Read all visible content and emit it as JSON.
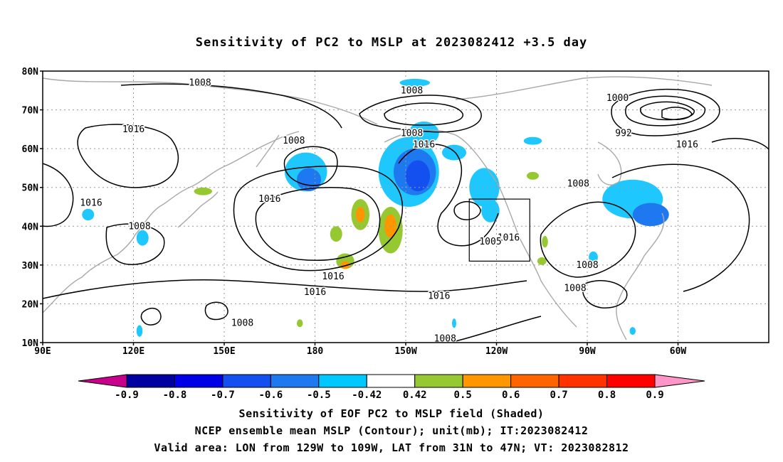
{
  "title": "Sensitivity of PC2 to MSLP at 2023082412 +3.5 day",
  "lat_labels": [
    "80N",
    "70N",
    "60N",
    "50N",
    "40N",
    "30N",
    "20N",
    "10N"
  ],
  "lon_labels": [
    "90E",
    "120E",
    "150E",
    "180",
    "150W",
    "120W",
    "90W",
    "60W"
  ],
  "contour_labels": [
    {
      "text": "1008",
      "lon": 142,
      "lat": 77
    },
    {
      "text": "1016",
      "lon": 120,
      "lat": 65
    },
    {
      "text": "1008",
      "lon": 173,
      "lat": 62
    },
    {
      "text": "1008",
      "lon": 212,
      "lat": 75
    },
    {
      "text": "1000",
      "lon": 280,
      "lat": 73
    },
    {
      "text": "992",
      "lon": 282,
      "lat": 64
    },
    {
      "text": "1016",
      "lon": 303,
      "lat": 61
    },
    {
      "text": "1008",
      "lon": 212,
      "lat": 64
    },
    {
      "text": "1016",
      "lon": 216,
      "lat": 61
    },
    {
      "text": "1008",
      "lon": 267,
      "lat": 51
    },
    {
      "text": "1016",
      "lon": 106,
      "lat": 46
    },
    {
      "text": "1016",
      "lon": 165,
      "lat": 47
    },
    {
      "text": "1008",
      "lon": 122,
      "lat": 40
    },
    {
      "text": "1016",
      "lon": 244,
      "lat": 37
    },
    {
      "text": "1005",
      "lon": 238,
      "lat": 36
    },
    {
      "text": "1008",
      "lon": 270,
      "lat": 30
    },
    {
      "text": "1016",
      "lon": 186,
      "lat": 27
    },
    {
      "text": "1016",
      "lon": 180,
      "lat": 23
    },
    {
      "text": "1016",
      "lon": 221,
      "lat": 22
    },
    {
      "text": "1008",
      "lon": 266,
      "lat": 24
    },
    {
      "text": "1008",
      "lon": 156,
      "lat": 15
    },
    {
      "text": "1008",
      "lon": 223,
      "lat": 11
    }
  ],
  "shading": [
    {
      "lon": 177,
      "lat": 54,
      "rx": 7,
      "ry": 5,
      "level": -0.5
    },
    {
      "lon": 178,
      "lat": 52,
      "rx": 4,
      "ry": 3,
      "level": -0.6
    },
    {
      "lon": 211,
      "lat": 54,
      "rx": 10,
      "ry": 9,
      "level": -0.5
    },
    {
      "lon": 213,
      "lat": 54,
      "rx": 7,
      "ry": 6,
      "level": -0.6
    },
    {
      "lon": 214,
      "lat": 53,
      "rx": 4,
      "ry": 4,
      "level": -0.7
    },
    {
      "lon": 216,
      "lat": 64,
      "rx": 5,
      "ry": 3,
      "level": -0.5
    },
    {
      "lon": 213,
      "lat": 77,
      "rx": 5,
      "ry": 1,
      "level": -0.5
    },
    {
      "lon": 226,
      "lat": 59,
      "rx": 4,
      "ry": 2,
      "level": -0.5
    },
    {
      "lon": 236,
      "lat": 50,
      "rx": 5,
      "ry": 5,
      "level": -0.5
    },
    {
      "lon": 238,
      "lat": 44,
      "rx": 3,
      "ry": 3,
      "level": -0.5
    },
    {
      "lon": 252,
      "lat": 62,
      "rx": 3,
      "ry": 1,
      "level": -0.5
    },
    {
      "lon": 285,
      "lat": 47,
      "rx": 10,
      "ry": 5,
      "level": -0.5
    },
    {
      "lon": 291,
      "lat": 43,
      "rx": 6,
      "ry": 3,
      "level": -0.6
    },
    {
      "lon": 272,
      "lat": 32,
      "rx": 1.5,
      "ry": 1.5,
      "level": -0.5
    },
    {
      "lon": 105,
      "lat": 43,
      "rx": 2,
      "ry": 1.5,
      "level": -0.5
    },
    {
      "lon": 123,
      "lat": 37,
      "rx": 2,
      "ry": 2,
      "level": -0.5
    },
    {
      "lon": 122,
      "lat": 13,
      "rx": 1,
      "ry": 1.5,
      "level": -0.5
    },
    {
      "lon": 226,
      "lat": 15,
      "rx": 0.7,
      "ry": 1.2,
      "level": -0.5
    },
    {
      "lon": 285,
      "lat": 13,
      "rx": 1,
      "ry": 1,
      "level": -0.5
    },
    {
      "lon": 195,
      "lat": 43,
      "rx": 3,
      "ry": 4,
      "level": 0.5
    },
    {
      "lon": 195,
      "lat": 43,
      "rx": 1.5,
      "ry": 2,
      "level": 0.6
    },
    {
      "lon": 190,
      "lat": 31,
      "rx": 3,
      "ry": 2,
      "level": 0.5
    },
    {
      "lon": 190,
      "lat": 30,
      "rx": 1.5,
      "ry": 1,
      "level": 0.6
    },
    {
      "lon": 205,
      "lat": 39,
      "rx": 4,
      "ry": 6,
      "level": 0.5
    },
    {
      "lon": 205,
      "lat": 40,
      "rx": 2,
      "ry": 3,
      "level": 0.6
    },
    {
      "lon": 187,
      "lat": 38,
      "rx": 2,
      "ry": 2,
      "level": 0.5
    },
    {
      "lon": 143,
      "lat": 49,
      "rx": 3,
      "ry": 1,
      "level": 0.5
    },
    {
      "lon": 252,
      "lat": 53,
      "rx": 2,
      "ry": 1,
      "level": 0.5
    },
    {
      "lon": 256,
      "lat": 36,
      "rx": 1,
      "ry": 1.5,
      "level": 0.5
    },
    {
      "lon": 255,
      "lat": 31,
      "rx": 1.5,
      "ry": 1,
      "level": 0.5
    },
    {
      "lon": 175,
      "lat": 15,
      "rx": 1,
      "ry": 1,
      "level": 0.5
    }
  ],
  "colorbar": {
    "labels": [
      "-0.9",
      "-0.8",
      "-0.7",
      "-0.6",
      "-0.5",
      "-0.42",
      "0.42",
      "0.5",
      "0.6",
      "0.7",
      "0.8",
      "0.9"
    ],
    "colors": [
      "#c8008c",
      "#0000a0",
      "#0000e6",
      "#1450f0",
      "#1e78f0",
      "#00c8ff",
      "#ffffff",
      "#96c832",
      "#ff9600",
      "#ff6400",
      "#ff3200",
      "#ff0000",
      "#ff96c8"
    ]
  },
  "valid_box": {
    "lon_from": 231,
    "lon_to": 251,
    "lat_from": 31,
    "lat_to": 47
  },
  "captions": [
    "Sensitivity of EOF PC2 to MSLP field (Shaded)",
    "NCEP ensemble mean MSLP (Contour); unit(mb); IT:2023082412",
    "Valid area: LON from 129W to 109W, LAT from 31N to 47N; VT: 2023082812"
  ]
}
